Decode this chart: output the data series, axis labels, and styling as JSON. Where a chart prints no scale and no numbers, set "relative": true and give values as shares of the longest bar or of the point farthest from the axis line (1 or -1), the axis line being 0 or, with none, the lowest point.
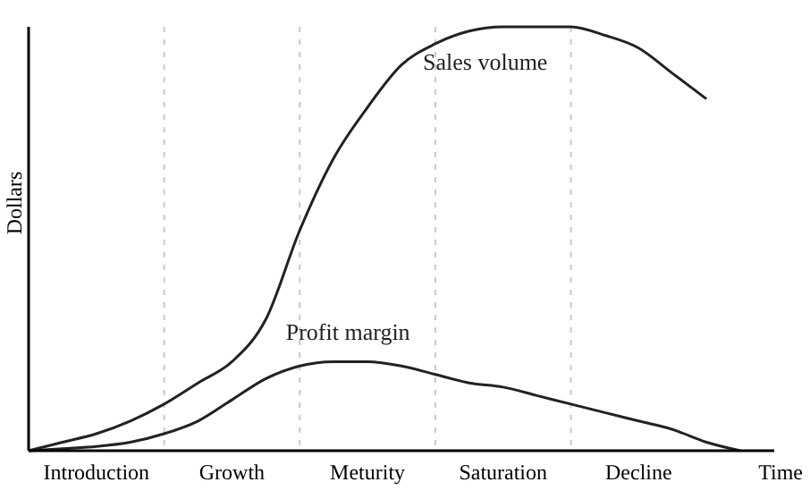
{
  "chart_data": {
    "type": "line",
    "relative": true,
    "xlabel": "Time",
    "ylabel": "Dollars",
    "categories": [
      null,
      null,
      "Introduction",
      null,
      null,
      null,
      "Growth",
      null,
      null,
      null,
      "Meturity",
      null,
      null,
      null,
      "Saturation",
      null,
      null,
      null,
      "Decline",
      null,
      null,
      null,
      null
    ],
    "grid": "x",
    "marker": "none",
    "line_style": "solid",
    "series": [
      {
        "name": "Sales volume",
        "color": "#222222",
        "values": [
          0,
          0.02,
          0.04,
          0.07,
          0.11,
          0.16,
          0.21,
          0.31,
          0.52,
          0.69,
          0.81,
          0.91,
          0.96,
          0.99,
          1,
          1,
          1,
          0.98,
          0.95,
          0.89,
          0.83,
          null,
          null
        ]
      },
      {
        "name": "Profit margin",
        "color": "#222222",
        "values": [
          0,
          0.005,
          0.01,
          0.02,
          0.04,
          0.07,
          0.12,
          0.17,
          0.2,
          0.21,
          0.21,
          0.2,
          0.18,
          0.16,
          0.15,
          0.13,
          0.11,
          0.09,
          0.07,
          0.05,
          0.02,
          0,
          null
        ]
      }
    ]
  }
}
